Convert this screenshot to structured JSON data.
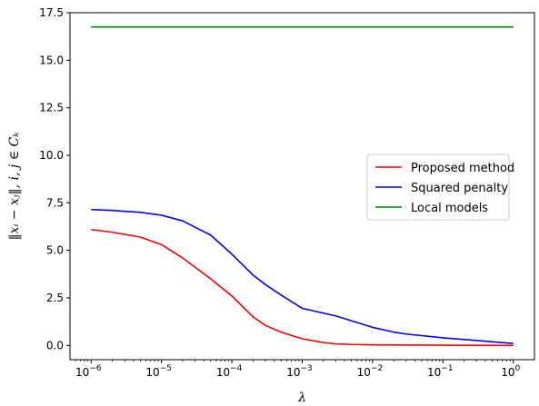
{
  "chart_data": {
    "type": "line",
    "title": "",
    "xlabel": "λ",
    "ylabel": "‖xᵢ − xⱼ‖, i, j ∈ Cₖ",
    "xscale": "log",
    "xlim": [
      5e-07,
      2
    ],
    "ylim": [
      -0.75,
      17.5
    ],
    "grid": false,
    "legend_position": "center-right",
    "x_ticks": [
      {
        "value": 1e-06,
        "base": "10",
        "exp": "−6"
      },
      {
        "value": 1e-05,
        "base": "10",
        "exp": "−5"
      },
      {
        "value": 0.0001,
        "base": "10",
        "exp": "−4"
      },
      {
        "value": 0.001,
        "base": "10",
        "exp": "−3"
      },
      {
        "value": 0.01,
        "base": "10",
        "exp": "−2"
      },
      {
        "value": 0.1,
        "base": "10",
        "exp": "−1"
      },
      {
        "value": 1,
        "base": "10",
        "exp": "0"
      }
    ],
    "y_ticks": [
      {
        "value": 0.0,
        "label": "0.0"
      },
      {
        "value": 2.5,
        "label": "2.5"
      },
      {
        "value": 5.0,
        "label": "5.0"
      },
      {
        "value": 7.5,
        "label": "7.5"
      },
      {
        "value": 10.0,
        "label": "10.0"
      },
      {
        "value": 12.5,
        "label": "12.5"
      },
      {
        "value": 15.0,
        "label": "15.0"
      },
      {
        "value": 17.5,
        "label": "17.5"
      }
    ],
    "series": [
      {
        "name": "Proposed method",
        "color": "#ff0000",
        "x": [
          1e-06,
          2e-06,
          5e-06,
          1e-05,
          2e-05,
          5e-05,
          0.0001,
          0.0002,
          0.0003,
          0.0005,
          0.001,
          0.002,
          0.003,
          0.005,
          0.01,
          0.1,
          1
        ],
        "y": [
          6.1,
          5.95,
          5.7,
          5.3,
          4.6,
          3.5,
          2.6,
          1.5,
          1.05,
          0.7,
          0.35,
          0.15,
          0.08,
          0.05,
          0.03,
          0.01,
          0.0
        ]
      },
      {
        "name": "Squared penalty",
        "color": "#0000ff",
        "x": [
          1e-06,
          2e-06,
          5e-06,
          1e-05,
          2e-05,
          5e-05,
          0.0001,
          0.0002,
          0.0003,
          0.0005,
          0.001,
          0.002,
          0.003,
          0.005,
          0.01,
          0.02,
          0.03,
          0.1,
          1
        ],
        "y": [
          7.15,
          7.1,
          7.0,
          6.85,
          6.55,
          5.8,
          4.8,
          3.7,
          3.2,
          2.65,
          1.95,
          1.7,
          1.55,
          1.3,
          0.95,
          0.7,
          0.6,
          0.4,
          0.1
        ]
      },
      {
        "name": "Local models",
        "color": "#008000",
        "x": [
          1e-06,
          1
        ],
        "y": [
          16.75,
          16.75
        ]
      }
    ]
  }
}
